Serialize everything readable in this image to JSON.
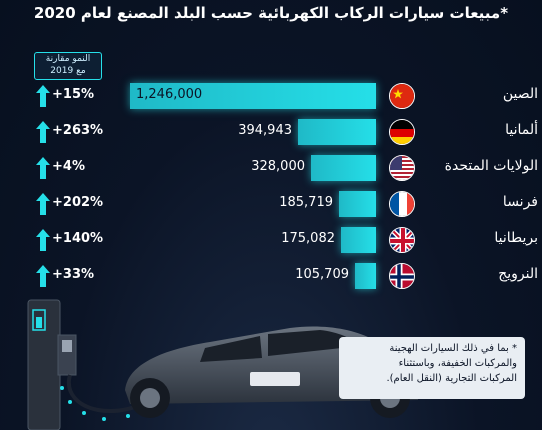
{
  "title": "*مبيعات سيارات الركاب الكهربائية حسب البلد المصنع لعام 2020",
  "growth_header": [
    "النمو مقارنة",
    "مع 2019"
  ],
  "footnote": [
    "* بما في ذلك السيارات الهجينة",
    "والمركبات الخفيفة، وباستثناء",
    "المركبات التجارية (النقل العام)."
  ],
  "colors": {
    "bar": "#25dfe8",
    "background": "#0b1426",
    "arrow": "#25dfe8"
  },
  "rows": [
    {
      "country": "الصين",
      "value_label": "1,246,000",
      "growth": "+15%",
      "flag": "china-flag-icon"
    },
    {
      "country": "ألمانيا",
      "value_label": "394,943",
      "growth": "+263%",
      "flag": "germany-flag-icon"
    },
    {
      "country": "الولايات المتحدة",
      "value_label": "328,000",
      "growth": "+4%",
      "flag": "usa-flag-icon"
    },
    {
      "country": "فرنسا",
      "value_label": "185,719",
      "growth": "+202%",
      "flag": "france-flag-icon"
    },
    {
      "country": "بريطانيا",
      "value_label": "175,082",
      "growth": "+140%",
      "flag": "uk-flag-icon"
    },
    {
      "country": "النرويج",
      "value_label": "105,709",
      "growth": "+33%",
      "flag": "norway-flag-icon"
    }
  ],
  "chart_data": {
    "type": "bar",
    "orientation": "horizontal",
    "title": "*مبيعات سيارات الركاب الكهربائية حسب البلد المصنع لعام 2020",
    "categories": [
      "الصين",
      "ألمانيا",
      "الولايات المتحدة",
      "فرنسا",
      "بريطانيا",
      "النرويج"
    ],
    "values": [
      1246000,
      394943,
      328000,
      185719,
      175082,
      105709
    ],
    "growth_vs_2019_percent": [
      15,
      263,
      4,
      202,
      140,
      33
    ],
    "bar_direction": "right-to-left",
    "grid": false
  }
}
